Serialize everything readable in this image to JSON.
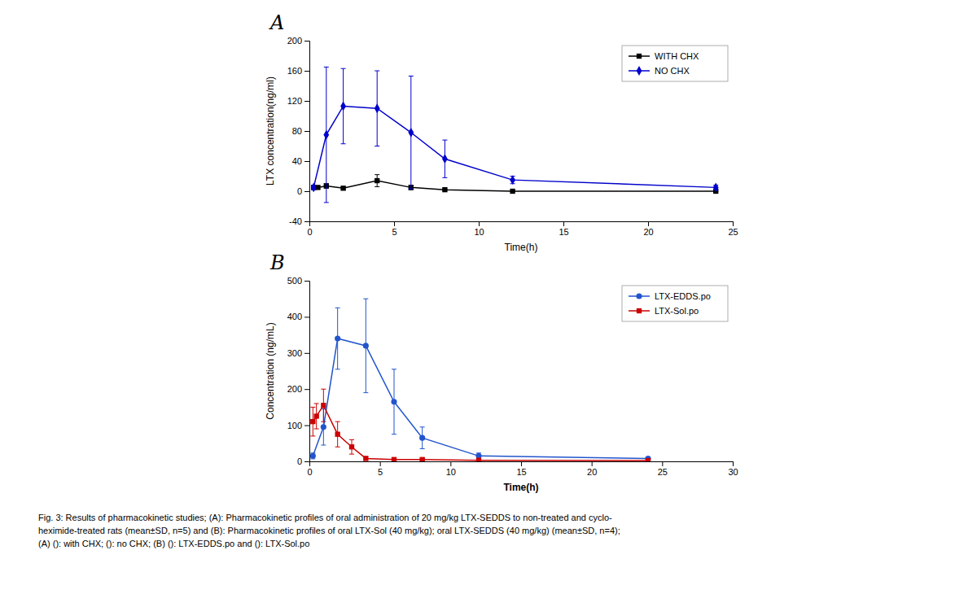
{
  "chart_data": [
    {
      "type": "line",
      "title": "A",
      "x_label": "Time(h)",
      "y_label": "LTX concentration(ng/ml)",
      "xlim": [
        0,
        25
      ],
      "ylim": [
        -40,
        200
      ],
      "xticks": [
        0,
        5,
        10,
        15,
        20,
        25
      ],
      "yticks": [
        -40,
        0,
        40,
        80,
        120,
        160,
        200
      ],
      "grid": false,
      "legend": "upper right",
      "series": [
        {
          "name": "WITH CHX",
          "color": "#000000",
          "marker": "square",
          "line_style": "solid",
          "x": [
            0.25,
            0.5,
            1,
            2,
            4,
            6,
            8,
            12,
            24
          ],
          "values": [
            5,
            5,
            7,
            4,
            14,
            5,
            2,
            0,
            0
          ],
          "errors": [
            2,
            2,
            3,
            2,
            8,
            3,
            1,
            0,
            0
          ]
        },
        {
          "name": "NO CHX",
          "color": "#0000cc",
          "marker": "diamond",
          "line_style": "solid",
          "x": [
            0.25,
            1,
            2,
            4,
            6,
            8,
            12,
            24
          ],
          "values": [
            5,
            75,
            113,
            110,
            78,
            43,
            15,
            5
          ],
          "errors": [
            3,
            90,
            50,
            50,
            75,
            25,
            5,
            3
          ]
        }
      ]
    },
    {
      "type": "line",
      "title": "B",
      "x_label": "Time(h)",
      "y_label": "Concentration (ng/mL)",
      "xlim": [
        0,
        30
      ],
      "ylim": [
        0,
        500
      ],
      "xticks": [
        0,
        5,
        10,
        15,
        20,
        25,
        30
      ],
      "yticks": [
        0,
        100,
        200,
        300,
        400,
        500
      ],
      "grid": false,
      "legend": "upper right",
      "series": [
        {
          "name": "LTX-EDDS.po",
          "color": "#2255cc",
          "marker": "circle",
          "line_style": "solid",
          "x": [
            0.25,
            1,
            2,
            4,
            6,
            8,
            12,
            24
          ],
          "values": [
            15,
            95,
            340,
            320,
            165,
            65,
            15,
            8
          ],
          "errors": [
            8,
            50,
            85,
            130,
            90,
            30,
            8,
            4
          ]
        },
        {
          "name": "LTX-Sol.po",
          "color": "#cc0000",
          "marker": "square",
          "line_style": "solid",
          "x": [
            0.25,
            0.5,
            1,
            2,
            3,
            4,
            6,
            8,
            12,
            24
          ],
          "values": [
            110,
            125,
            155,
            75,
            40,
            8,
            5,
            5,
            3,
            2
          ],
          "errors": [
            40,
            35,
            45,
            35,
            20,
            5,
            3,
            3,
            2,
            1
          ]
        }
      ]
    }
  ],
  "caption": [
    "Fig. 3: Results of pharmacokinetic studies; (A): Pharmacokinetic profiles of oral administration of 20 mg/kg LTX-SEDDS to non-treated and cyclo-",
    "heximide-treated rats (mean±SD, n=5) and (B): Pharmacokinetic profiles of oral LTX-Sol (40 mg/kg); oral LTX-SEDDS (40 mg/kg) (mean±SD, n=4);",
    "(A) (): with CHX; (): no CHX; (B) (): LTX-EDDS.po and (): LTX-Sol.po"
  ]
}
